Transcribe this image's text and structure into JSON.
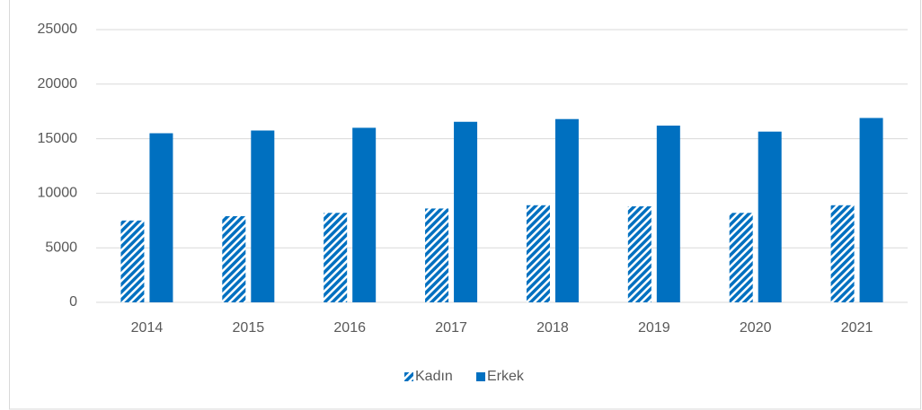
{
  "chart_data": {
    "type": "bar",
    "categories": [
      "2014",
      "2015",
      "2016",
      "2017",
      "2018",
      "2019",
      "2020",
      "2021"
    ],
    "series": [
      {
        "name": "Kadın",
        "color": "#0070c0",
        "pattern": "hatch",
        "values": [
          7500,
          7900,
          8200,
          8600,
          8900,
          8800,
          8200,
          8900
        ]
      },
      {
        "name": "Erkek",
        "color": "#0070c0",
        "values": [
          15500,
          15750,
          16000,
          16550,
          16800,
          16200,
          15650,
          16900
        ]
      }
    ],
    "ylim": [
      0,
      25000
    ],
    "yticks": [
      0,
      5000,
      10000,
      15000,
      20000,
      25000
    ],
    "grid": true,
    "legend": "bottom"
  }
}
